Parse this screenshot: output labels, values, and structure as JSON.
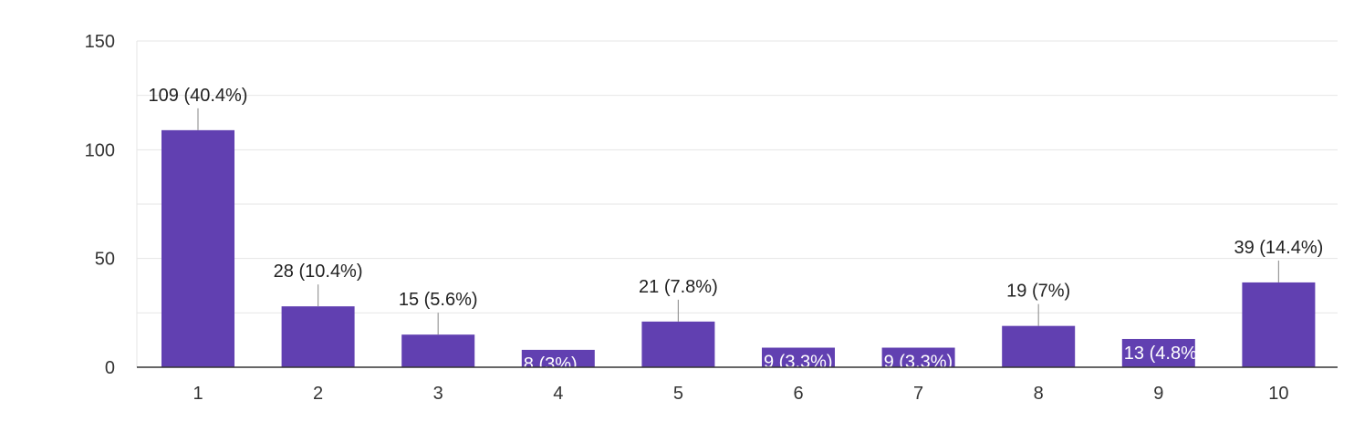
{
  "chart_data": {
    "type": "bar",
    "categories": [
      "1",
      "2",
      "3",
      "4",
      "5",
      "6",
      "7",
      "8",
      "9",
      "10"
    ],
    "values": [
      109,
      28,
      15,
      8,
      21,
      9,
      9,
      19,
      13,
      39
    ],
    "data_labels": [
      "109 (40.4%)",
      "28 (10.4%)",
      "15 (5.6%)",
      "8 (3%)",
      "21 (7.8%)",
      "9 (3.3%)",
      "9 (3.3%)",
      "19 (7%)",
      "13 (4.8%)",
      "39 (14.4%)"
    ],
    "y_ticks": [
      "0",
      "50",
      "100",
      "150"
    ],
    "ylim": [
      0,
      150
    ],
    "grid": true,
    "colors": {
      "bar": "#6140b1",
      "grid": "#e6e6e6",
      "axis": "#333333"
    }
  }
}
